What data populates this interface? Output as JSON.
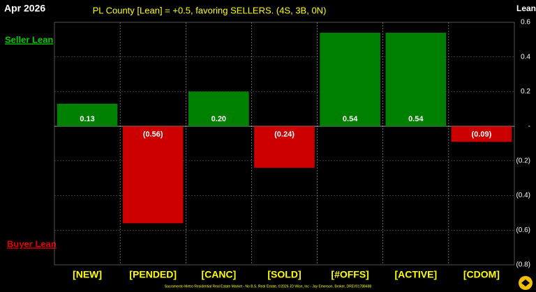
{
  "chart_data": {
    "type": "bar",
    "date_label": "Apr 2026",
    "title": "PL County [Lean] = +0.5, favoring SELLERS. (4S, 3B, 0N)",
    "y_axis_label": "Lean",
    "top_annotation": "Seller Lean",
    "bottom_annotation": "Buyer Lean",
    "footer": "Sacramento Metro Residential Real Estate Market - No B.S. Real Estate, ©2026 JD Wise, Inc - Jay Emerson, Broker, DRE#01788488",
    "categories": [
      "[NEW]",
      "[PENDED]",
      "[CANC]",
      "[SOLD]",
      "[#OFFS]",
      "[ACTIVE]",
      "[CDOM]"
    ],
    "values": [
      0.13,
      -0.56,
      0.2,
      -0.24,
      0.54,
      0.54,
      -0.09
    ],
    "value_labels": [
      "0.13",
      "(0.56)",
      "0.20",
      "(0.24)",
      "0.54",
      "0.54",
      "(0.09)"
    ],
    "positive_color": "#008000",
    "negative_color": "#cc0000",
    "ylim": [
      -0.8,
      0.6
    ],
    "yticks": [
      0.6,
      0.4,
      0.2,
      {
        "value": 0,
        "label": "-"
      },
      {
        "value": -0.2,
        "label": "(0.2)"
      },
      {
        "value": -0.4,
        "label": "(0.4)"
      },
      {
        "value": -0.6,
        "label": "(0.6)"
      },
      {
        "value": -0.8,
        "label": "(0.8)"
      }
    ],
    "grid": true
  }
}
